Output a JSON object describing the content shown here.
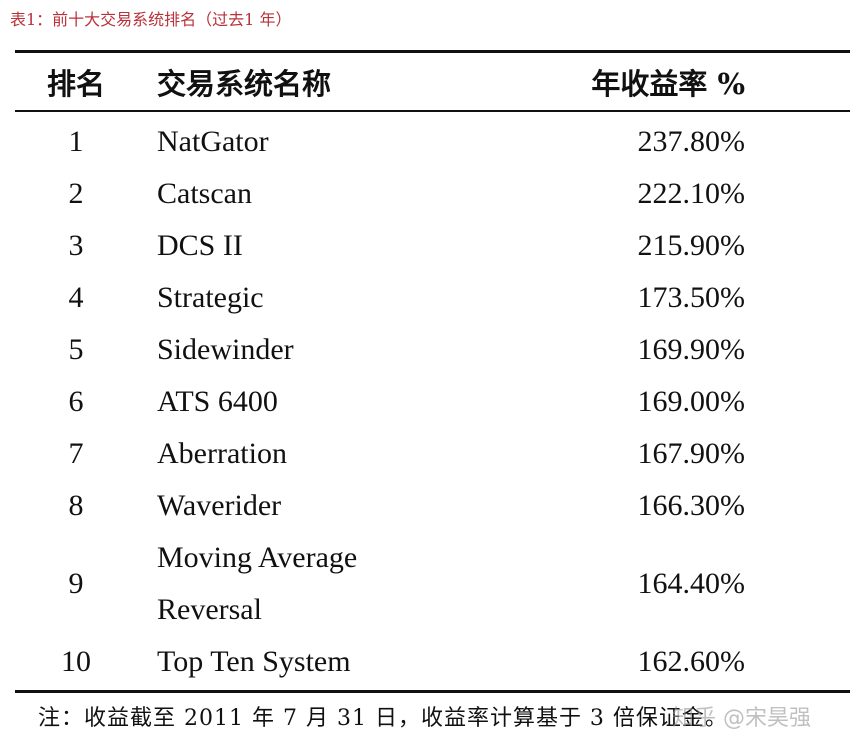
{
  "caption": "表1：前十大交易系统排名（过去1 年）",
  "table": {
    "header": [
      "排名",
      "交易系统名称",
      "年收益率 %"
    ],
    "rows": [
      [
        "1",
        "NatGator",
        "237.80%"
      ],
      [
        "2",
        "Catscan",
        "222.10%"
      ],
      [
        "3",
        "DCS II",
        "215.90%"
      ],
      [
        "4",
        "Strategic",
        "173.50%"
      ],
      [
        "5",
        "Sidewinder",
        "169.90%"
      ],
      [
        "6",
        "ATS 6400",
        "169.00%"
      ],
      [
        "7",
        "Aberration",
        "167.90%"
      ],
      [
        "8",
        "Waverider",
        "166.30%"
      ],
      [
        "9",
        "Moving Average Reversal",
        "164.40%"
      ],
      [
        "10",
        "Top Ten System",
        "162.60%"
      ]
    ]
  },
  "note": "注：收益截至 2011 年 7 月 31 日，收益率计算基于 3 倍保证金。",
  "watermark": "知乎 @宋昊强"
}
